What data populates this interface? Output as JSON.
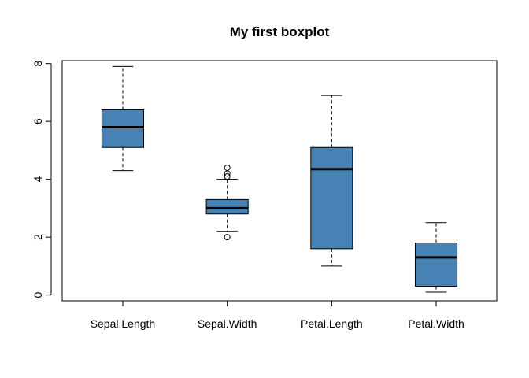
{
  "chart_data": {
    "type": "boxplot",
    "title": "My first boxplot",
    "xlabel": "",
    "ylabel": "",
    "ylim": [
      -0.2,
      8.1
    ],
    "y_ticks": [
      0,
      2,
      4,
      6,
      8
    ],
    "box_color": "#4682B4",
    "grid": false,
    "categories": [
      "Sepal.Length",
      "Sepal.Width",
      "Petal.Length",
      "Petal.Width"
    ],
    "boxes": [
      {
        "min": 4.3,
        "q1": 5.1,
        "median": 5.8,
        "q3": 6.4,
        "max": 7.9,
        "outliers": []
      },
      {
        "min": 2.2,
        "q1": 2.8,
        "median": 3.0,
        "q3": 3.3,
        "max": 4.0,
        "outliers": [
          4.4,
          4.2,
          4.1,
          2.0
        ]
      },
      {
        "min": 1.0,
        "q1": 1.6,
        "median": 4.35,
        "q3": 5.1,
        "max": 6.9,
        "outliers": []
      },
      {
        "min": 0.1,
        "q1": 0.3,
        "median": 1.3,
        "q3": 1.8,
        "max": 2.5,
        "outliers": []
      }
    ]
  }
}
